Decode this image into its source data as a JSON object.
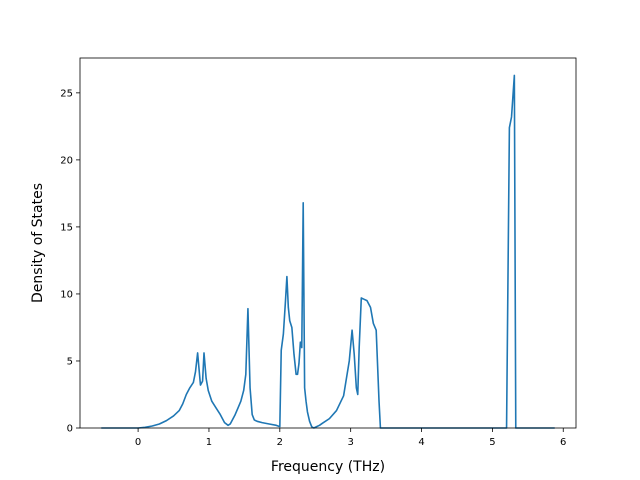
{
  "chart_data": {
    "type": "line",
    "title": "",
    "xlabel": "Frequency (THz)",
    "ylabel": "Density of States",
    "xlim": [
      -0.82,
      6.18
    ],
    "ylim": [
      0,
      27.6
    ],
    "xticks": [
      0,
      1,
      2,
      3,
      4,
      5,
      6
    ],
    "yticks": [
      0,
      5,
      10,
      15,
      20,
      25
    ],
    "grid": false,
    "legend": "none",
    "line_color": "#1f77b4",
    "series": [
      {
        "x": [
          -0.52,
          -0.3,
          0.0,
          0.1,
          0.2,
          0.3,
          0.4,
          0.5,
          0.58,
          0.63,
          0.68,
          0.73,
          0.78,
          0.81,
          0.84,
          0.88,
          0.91,
          0.93,
          0.96,
          0.99,
          1.04,
          1.1,
          1.16,
          1.22,
          1.27,
          1.3,
          1.33,
          1.37,
          1.41,
          1.45,
          1.49,
          1.52,
          1.55,
          1.58,
          1.61,
          1.64,
          1.68,
          1.75,
          1.85,
          1.95,
          2.0,
          2.02,
          2.05,
          2.08,
          2.1,
          2.12,
          2.14,
          2.17,
          2.2,
          2.23,
          2.25,
          2.27,
          2.29,
          2.31,
          2.33,
          2.35,
          2.37,
          2.39,
          2.42,
          2.45,
          2.48,
          2.52,
          2.56,
          2.6,
          2.7,
          2.8,
          2.9,
          2.98,
          3.02,
          3.05,
          3.08,
          3.1,
          3.12,
          3.15,
          3.19,
          3.23,
          3.28,
          3.32,
          3.36,
          3.4,
          3.42,
          3.45,
          3.5,
          4.0,
          4.5,
          5.0,
          5.2,
          5.24,
          5.27,
          5.31,
          5.33,
          5.36,
          5.42,
          5.6,
          5.88
        ],
        "y": [
          0,
          0,
          0,
          0.05,
          0.15,
          0.3,
          0.55,
          0.9,
          1.3,
          1.8,
          2.5,
          3.0,
          3.4,
          4.2,
          5.6,
          3.2,
          3.5,
          5.6,
          3.7,
          2.8,
          2.0,
          1.5,
          1.0,
          0.4,
          0.2,
          0.3,
          0.6,
          1.0,
          1.5,
          2.0,
          2.8,
          4.0,
          8.9,
          3.0,
          1.0,
          0.6,
          0.5,
          0.4,
          0.3,
          0.2,
          0.1,
          5.8,
          7.0,
          9.5,
          11.3,
          9.0,
          8.0,
          7.5,
          5.5,
          4.0,
          4.0,
          4.8,
          6.4,
          6.0,
          16.8,
          3.0,
          2.0,
          1.2,
          0.5,
          0.1,
          0.0,
          0.1,
          0.2,
          0.35,
          0.7,
          1.3,
          2.4,
          5.0,
          7.3,
          5.5,
          3.0,
          2.5,
          6.0,
          9.7,
          9.6,
          9.5,
          9.0,
          7.8,
          7.3,
          2.0,
          0.0,
          0.0,
          0.0,
          0.0,
          0.0,
          0.0,
          0.0,
          22.4,
          23.2,
          26.3,
          0.0,
          0.0,
          0.0,
          0.0,
          0.0
        ]
      }
    ]
  }
}
